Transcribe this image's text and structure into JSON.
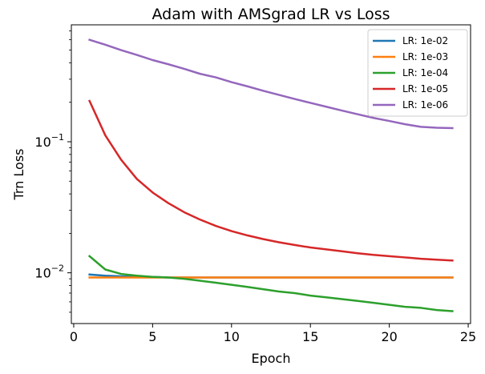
{
  "chart_data": {
    "type": "line",
    "title": "Adam with AMSgrad LR vs Loss",
    "xlabel": "Epoch",
    "ylabel": "Trn Loss",
    "xlim": [
      -0.15,
      25.15
    ],
    "ylim": [
      0.0041,
      0.78
    ],
    "yscale": "log",
    "x_ticks": [
      0,
      5,
      10,
      15,
      20,
      25
    ],
    "y_major_ticks": [
      {
        "value": 0.01,
        "base": "10",
        "exp": "−2"
      },
      {
        "value": 0.1,
        "base": "10",
        "exp": "−1"
      }
    ],
    "y_minor_ticks": [
      0.005,
      0.006,
      0.007,
      0.008,
      0.009,
      0.02,
      0.03,
      0.04,
      0.05,
      0.06,
      0.07,
      0.08,
      0.09,
      0.2,
      0.3,
      0.4,
      0.5,
      0.6,
      0.7
    ],
    "grid": false,
    "legend_position": "top-right",
    "x": [
      1,
      2,
      3,
      4,
      5,
      6,
      7,
      8,
      9,
      10,
      11,
      12,
      13,
      14,
      15,
      16,
      17,
      18,
      19,
      20,
      21,
      22,
      23,
      24
    ],
    "series": [
      {
        "name": "LR: 1e-02",
        "color": "#1f77b4",
        "values": [
          0.0097,
          0.0095,
          0.0094,
          0.0093,
          0.0093,
          0.0092,
          0.0092,
          0.0092,
          0.0092,
          0.0092,
          0.0092,
          0.0092,
          0.0092,
          0.0092,
          0.0092,
          0.0092,
          0.0092,
          0.0092,
          0.0092,
          0.0092,
          0.0092,
          0.0092,
          0.0092,
          0.0092
        ]
      },
      {
        "name": "LR: 1e-03",
        "color": "#ff7f0e",
        "values": [
          0.0092,
          0.0092,
          0.0092,
          0.0092,
          0.0092,
          0.0092,
          0.0092,
          0.0092,
          0.0092,
          0.0092,
          0.0092,
          0.0092,
          0.0092,
          0.0092,
          0.0092,
          0.0092,
          0.0092,
          0.0092,
          0.0092,
          0.0092,
          0.0092,
          0.0092,
          0.0092,
          0.0092
        ]
      },
      {
        "name": "LR: 1e-04",
        "color": "#2ca02c",
        "values": [
          0.0134,
          0.0106,
          0.0098,
          0.0095,
          0.0093,
          0.0092,
          0.009,
          0.0087,
          0.0084,
          0.0081,
          0.0078,
          0.0075,
          0.0072,
          0.007,
          0.0067,
          0.0065,
          0.0063,
          0.0061,
          0.0059,
          0.0057,
          0.0055,
          0.0054,
          0.0052,
          0.0051
        ]
      },
      {
        "name": "LR: 1e-05",
        "color": "#d62728",
        "values": [
          0.205,
          0.112,
          0.073,
          0.052,
          0.041,
          0.034,
          0.029,
          0.0255,
          0.0228,
          0.0208,
          0.0193,
          0.0181,
          0.0171,
          0.0163,
          0.0156,
          0.0151,
          0.0146,
          0.0141,
          0.0137,
          0.0134,
          0.0131,
          0.0128,
          0.0126,
          0.0124
        ]
      },
      {
        "name": "LR: 1e-06",
        "color": "#9467bd",
        "values": [
          0.6,
          0.55,
          0.5,
          0.46,
          0.42,
          0.39,
          0.36,
          0.33,
          0.31,
          0.285,
          0.265,
          0.245,
          0.228,
          0.212,
          0.198,
          0.185,
          0.173,
          0.162,
          0.152,
          0.144,
          0.136,
          0.13,
          0.128,
          0.127
        ]
      }
    ]
  }
}
